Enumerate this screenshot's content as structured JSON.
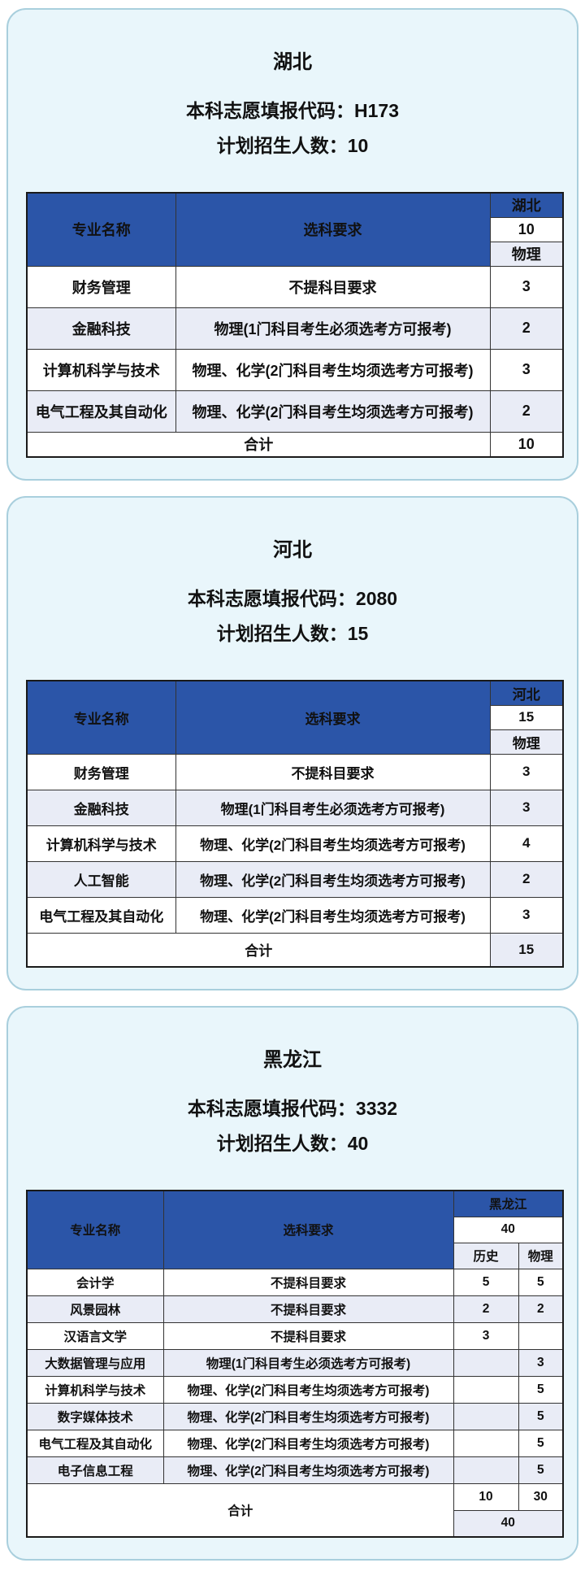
{
  "colors": {
    "header_blue": "#2b55a8",
    "alt_row_lavender": "#e9ecf6",
    "card_background": "#e9f6fb",
    "card_border": "#a9cfdd",
    "grid_line": "#333333",
    "text": "#111111"
  },
  "cards": [
    {
      "title": "湖北",
      "code_line": "本科志愿填报代码：H173",
      "plan_line": "计划招生人数：10",
      "table": {
        "col_headers": {
          "major": "专业名称",
          "requirement": "选科要求"
        },
        "province": "湖北",
        "total": "10",
        "tracks": [
          "物理"
        ],
        "rows": [
          {
            "major": "财务管理",
            "requirement": "不提科目要求",
            "values": [
              "3"
            ]
          },
          {
            "major": "金融科技",
            "requirement": "物理(1门科目考生必须选考方可报考)",
            "values": [
              "2"
            ]
          },
          {
            "major": "计算机科学与技术",
            "requirement": "物理、化学(2门科目考生均须选考方可报考)",
            "values": [
              "3"
            ]
          },
          {
            "major": "电气工程及其自动化",
            "requirement": "物理、化学(2门科目考生均须选考方可报考)",
            "values": [
              "2"
            ]
          }
        ],
        "footer": {
          "label": "合计",
          "values": [
            "10"
          ]
        }
      }
    },
    {
      "title": "河北",
      "code_line": "本科志愿填报代码：2080",
      "plan_line": "计划招生人数：15",
      "table": {
        "col_headers": {
          "major": "专业名称",
          "requirement": "选科要求"
        },
        "province": "河北",
        "total": "15",
        "tracks": [
          "物理"
        ],
        "rows": [
          {
            "major": "财务管理",
            "requirement": "不提科目要求",
            "values": [
              "3"
            ]
          },
          {
            "major": "金融科技",
            "requirement": "物理(1门科目考生必须选考方可报考)",
            "values": [
              "3"
            ]
          },
          {
            "major": "计算机科学与技术",
            "requirement": "物理、化学(2门科目考生均须选考方可报考)",
            "values": [
              "4"
            ]
          },
          {
            "major": "人工智能",
            "requirement": "物理、化学(2门科目考生均须选考方可报考)",
            "values": [
              "2"
            ]
          },
          {
            "major": "电气工程及其自动化",
            "requirement": "物理、化学(2门科目考生均须选考方可报考)",
            "values": [
              "3"
            ]
          }
        ],
        "footer": {
          "label": "合计",
          "values": [
            "15"
          ]
        }
      }
    },
    {
      "title": "黑龙江",
      "code_line": "本科志愿填报代码：3332",
      "plan_line": "计划招生人数：40",
      "table": {
        "col_headers": {
          "major": "专业名称",
          "requirement": "选科要求"
        },
        "province": "黑龙江",
        "total": "40",
        "tracks": [
          "历史",
          "物理"
        ],
        "rows": [
          {
            "major": "会计学",
            "requirement": "不提科目要求",
            "values": [
              "5",
              "5"
            ]
          },
          {
            "major": "风景园林",
            "requirement": "不提科目要求",
            "values": [
              "2",
              "2"
            ]
          },
          {
            "major": "汉语言文学",
            "requirement": "不提科目要求",
            "values": [
              "3",
              ""
            ]
          },
          {
            "major": "大数据管理与应用",
            "requirement": "物理(1门科目考生必须选考方可报考)",
            "values": [
              "",
              "3"
            ]
          },
          {
            "major": "计算机科学与技术",
            "requirement": "物理、化学(2门科目考生均须选考方可报考)",
            "values": [
              "",
              "5"
            ]
          },
          {
            "major": "数字媒体技术",
            "requirement": "物理、化学(2门科目考生均须选考方可报考)",
            "values": [
              "",
              "5"
            ]
          },
          {
            "major": "电气工程及其自动化",
            "requirement": "物理、化学(2门科目考生均须选考方可报考)",
            "values": [
              "",
              "5"
            ]
          },
          {
            "major": "电子信息工程",
            "requirement": "物理、化学(2门科目考生均须选考方可报考)",
            "values": [
              "",
              "5"
            ]
          }
        ],
        "footer": {
          "label": "合计",
          "values": [
            "10",
            "30"
          ],
          "grand_total": "40"
        }
      }
    }
  ]
}
